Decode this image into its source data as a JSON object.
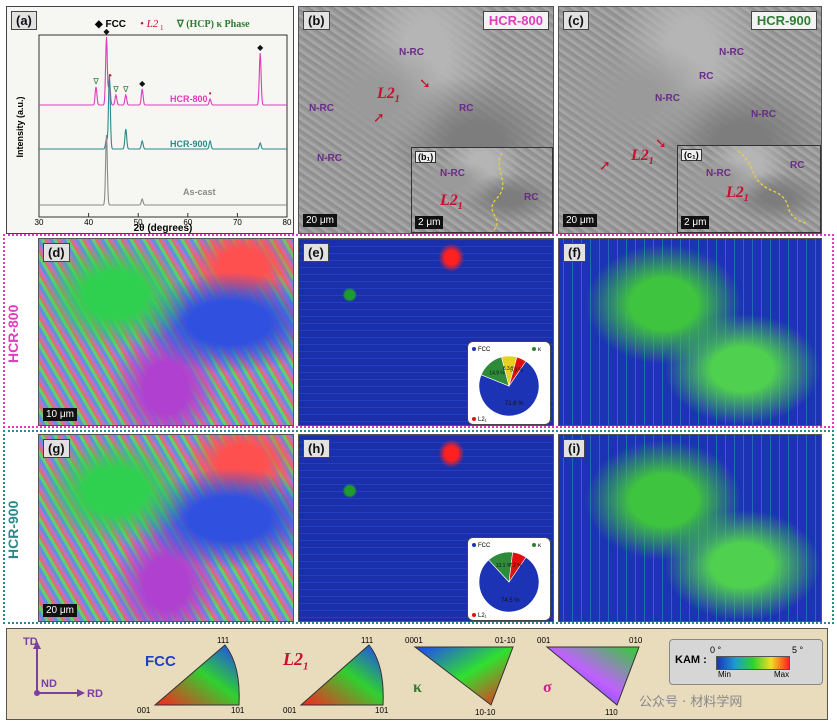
{
  "xrd": {
    "panel_label": "(a)",
    "legend": [
      "FCC",
      "L2",
      "1",
      "(HCP) κ Phase"
    ],
    "ylabel": "Intensity (a.u.)",
    "xlabel": "2θ (degrees)",
    "xticks": [
      "30",
      "40",
      "50",
      "60",
      "70",
      "80"
    ],
    "series_labels": [
      "HCR-800",
      "HCR-900",
      "As-cast"
    ],
    "colors": {
      "hcr800": "#e03cbc",
      "hcr900": "#2a8a8a",
      "ascast": "#8a8a8a"
    }
  },
  "chart_data": {
    "type": "line",
    "xlabel": "2θ (degrees)",
    "ylabel": "Intensity (a.u.)",
    "xlim": [
      30,
      80
    ],
    "series": [
      {
        "name": "HCR-800",
        "peaks": [
          41.5,
          43.6,
          44.2,
          45.5,
          47.5,
          50.8,
          64.5,
          74.6
        ]
      },
      {
        "name": "HCR-900",
        "peaks": [
          43.6,
          44.2,
          47.5,
          50.8,
          64.5,
          74.6
        ]
      },
      {
        "name": "As-cast",
        "peaks": [
          43.6,
          50.8
        ]
      }
    ]
  },
  "sem_b": {
    "panel_label": "(b)",
    "title": "HCR-800",
    "inset_label": "(b₁)",
    "scale": "20 μm",
    "inset_scale": "2 μm",
    "tags": [
      "N-RC",
      "N-RC",
      "RC",
      "N-RC",
      "N-RC",
      "RC"
    ],
    "l21": "L2",
    "l21_sub": "1"
  },
  "sem_c": {
    "panel_label": "(c)",
    "title": "HCR-900",
    "inset_label": "(c₁)",
    "scale": "20 μm",
    "inset_scale": "2 μm",
    "tags": [
      "N-RC",
      "RC",
      "N-RC",
      "N-RC",
      "N-RC",
      "RC"
    ],
    "l21": "L2",
    "l21_sub": "1"
  },
  "rows": {
    "row1_label": "HCR-800",
    "row2_label": "HCR-900",
    "row1_color": "#e03cbc",
    "row2_color": "#2a8a8a",
    "panels": [
      "(d)",
      "(e)",
      "(f)",
      "(g)",
      "(h)",
      "(i)"
    ],
    "scale_d": "10 μm",
    "scale_g": "20 μm"
  },
  "pies": {
    "row1": {
      "values": [
        "71.6 %",
        "14.9 %",
        "8.3 %",
        "5.3 %"
      ],
      "legend": [
        "FCC",
        "κ",
        "L2₁"
      ]
    },
    "row2": {
      "values": [
        "74.5 %",
        "13.1 %",
        "7.2 %"
      ],
      "legend": [
        "FCC",
        "κ",
        "L2₁"
      ]
    }
  },
  "key": {
    "axes": {
      "td": "TD",
      "nd": "ND",
      "rd": "RD"
    },
    "fcc": {
      "name": "FCC",
      "corners": [
        "111",
        "001",
        "101"
      ]
    },
    "l21": {
      "name": "L2",
      "sub": "1",
      "corners": [
        "111",
        "001",
        "101"
      ]
    },
    "kappa": {
      "name": "κ",
      "corners": [
        "0001",
        "01-10",
        "10-10"
      ]
    },
    "sigma": {
      "name": "σ",
      "corners": [
        "001",
        "010",
        "110"
      ]
    },
    "kam": {
      "label": "KAM :",
      "min_deg": "0 °",
      "max_deg": "5 °",
      "min": "Min",
      "max": "Max"
    },
    "watermark": "公众号 · 材料学网"
  }
}
